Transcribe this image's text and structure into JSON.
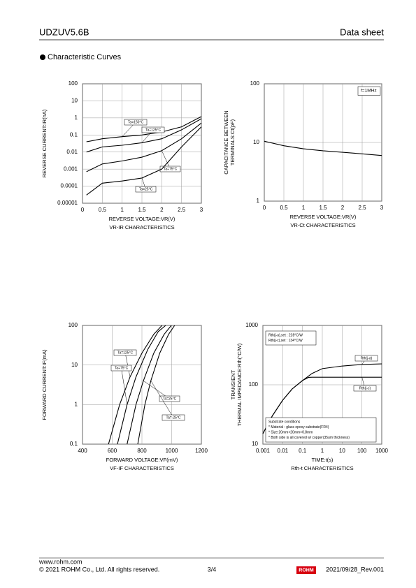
{
  "header": {
    "title": "UDZUV5.6B",
    "doc_type": "Data sheet"
  },
  "section": "Characteristic Curves",
  "chart_data": [
    {
      "type": "line",
      "xlabel": "REVERSE VOLTAGE:VR(V)",
      "ylabel": [
        "REVERSE CURRENT:IR(nA)"
      ],
      "caption": "VR-IR CHARACTERISTICS",
      "x": [
        0.1,
        0.5,
        1,
        1.5,
        2,
        2.5,
        3
      ],
      "xlim": [
        0,
        3
      ],
      "xticks": [
        0,
        0.5,
        1,
        1.5,
        2,
        2.5,
        3
      ],
      "ylim": [
        1e-05,
        100
      ],
      "yticks": [
        100,
        10,
        1,
        0.1,
        0.01,
        0.001,
        0.0001,
        1e-05
      ],
      "yscale": "log",
      "grid": true,
      "series": [
        {
          "name": "Ta=150°C",
          "color": "#000000",
          "values": [
            0.04,
            0.06,
            0.08,
            0.1,
            0.15,
            0.3,
            1.2
          ]
        },
        {
          "name": "Ta=125°C",
          "color": "#000000",
          "values": [
            0.01,
            0.02,
            0.025,
            0.035,
            0.06,
            0.2,
            0.9
          ]
        },
        {
          "name": "Ta=75°C",
          "color": "#000000",
          "values": [
            0.0007,
            0.002,
            0.003,
            0.005,
            0.012,
            0.06,
            0.5
          ]
        },
        {
          "name": "Ta=25°C",
          "color": "#000000",
          "values": [
            3e-05,
            0.00015,
            0.0002,
            0.0003,
            0.001,
            0.02,
            0.3
          ]
        }
      ]
    },
    {
      "type": "line",
      "xlabel": "REVERSE VOLTAGE:VR(V)",
      "ylabel": [
        "CAPACITANCE BETWEEN",
        "TERMINALS:Ct(pF)"
      ],
      "caption": "VR-Ct CHARACTERISTICS",
      "annotations": [
        "f=1MHz"
      ],
      "x": [
        0,
        0.5,
        1,
        1.5,
        2,
        2.5,
        3
      ],
      "xlim": [
        0,
        3
      ],
      "xticks": [
        0,
        0.5,
        1,
        1.5,
        2,
        2.5,
        3
      ],
      "ylim": [
        1,
        100
      ],
      "yticks": [
        100,
        10,
        1
      ],
      "yscale": "log",
      "grid": true,
      "series": [
        {
          "color": "#000000",
          "values": [
            10.5,
            8.8,
            7.8,
            7.2,
            6.8,
            6.4,
            6.0
          ]
        }
      ]
    },
    {
      "type": "line",
      "xlabel": "FORWARD VOLTAGE:VF(mV)",
      "ylabel": [
        "FORWARD CURRENT:IF(mA)"
      ],
      "caption": "VF-IF CHARACTERISTICS",
      "xlim": [
        400,
        1200
      ],
      "xticks": [
        400,
        600,
        800,
        1000,
        1200
      ],
      "ylim": [
        0.1,
        100
      ],
      "yticks": [
        100,
        10,
        1,
        0.1
      ],
      "yscale": "log",
      "grid": true,
      "series": [
        {
          "name": "Ta=125°C",
          "color": "#000000",
          "x": [
            575,
            650,
            720,
            800,
            880,
            935
          ],
          "values": [
            0.1,
            1,
            5,
            20,
            60,
            100
          ]
        },
        {
          "name": "Ta=75°C",
          "color": "#000000",
          "x": [
            635,
            700,
            760,
            840,
            910,
            960
          ],
          "values": [
            0.1,
            1,
            5,
            25,
            70,
            100
          ]
        },
        {
          "name": "Ta=25°C",
          "color": "#000000",
          "x": [
            700,
            760,
            810,
            880,
            950,
            998
          ],
          "values": [
            0.1,
            1,
            4,
            20,
            60,
            100
          ]
        },
        {
          "name": "Ta=-25°C",
          "color": "#000000",
          "x": [
            772,
            820,
            860,
            920,
            980,
            1020
          ],
          "values": [
            0.1,
            1,
            4,
            20,
            60,
            100
          ]
        }
      ]
    },
    {
      "type": "line",
      "xlabel": "TIME:t(s)",
      "ylabel": [
        "TRANSIENT",
        "THERMAL IMPEDANCE:Rth(°C/W)"
      ],
      "caption": "Rth-t CHARACTERISTICS",
      "annotations": [
        [
          "Rth(j-a),set : 228°C/W",
          "Rth(j-c),set : 134°C/W"
        ],
        [
          "Substrate conditions",
          "* Material : glass epoxy substrate(FR4)",
          "* Size:20mm×20mm×0.8mm",
          "* Both side is all covered w/ copper(35um thickness)"
        ]
      ],
      "x": [
        0.001,
        0.003,
        0.01,
        0.03,
        0.1,
        0.2,
        0.3,
        1,
        10,
        100,
        1000
      ],
      "xlim": [
        0.001,
        1000
      ],
      "xticks": [
        0.001,
        0.01,
        0.1,
        1,
        10,
        100,
        1000
      ],
      "xscale": "log",
      "ylim": [
        10,
        1000
      ],
      "yticks": [
        1000,
        100,
        10
      ],
      "yscale": "log",
      "grid": true,
      "series": [
        {
          "name": "Rth(j-a)",
          "color": "#000000",
          "values": [
            15,
            30,
            55,
            85,
            118,
            140,
            155,
            187,
            207,
            220,
            225
          ]
        },
        {
          "name": "Rth(j-c)",
          "color": "#000000",
          "values": [
            15,
            30,
            55,
            85,
            118,
            133,
            134,
            134,
            134,
            134,
            134
          ]
        }
      ]
    }
  ],
  "footer": {
    "url": "www.rohm.com",
    "copyright": "© 2021 ROHM Co., Ltd. All rights reserved.",
    "page": "3/4",
    "logo": "ROHM",
    "revision": "2021/09/28_Rev.001"
  }
}
